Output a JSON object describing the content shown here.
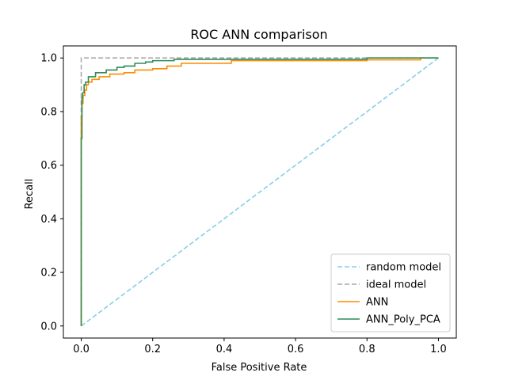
{
  "chart_data": {
    "type": "line",
    "title": "ROC ANN comparison",
    "xlabel": "False Positive Rate",
    "ylabel": "Recall",
    "xlim": [
      -0.05,
      1.05
    ],
    "ylim": [
      -0.045,
      1.045
    ],
    "xticks": [
      0.0,
      0.2,
      0.4,
      0.6,
      0.8,
      1.0
    ],
    "yticks": [
      0.0,
      0.2,
      0.4,
      0.6,
      0.8,
      1.0
    ],
    "xtick_labels": [
      "0.0",
      "0.2",
      "0.4",
      "0.6",
      "0.8",
      "1.0"
    ],
    "ytick_labels": [
      "0.0",
      "0.2",
      "0.4",
      "0.6",
      "0.8",
      "1.0"
    ],
    "grid": false,
    "legend_position": "bottom-right",
    "series": [
      {
        "name": "random model",
        "color": "#87ceeb",
        "style": "dashed",
        "x": [
          0,
          1
        ],
        "y": [
          0,
          1
        ]
      },
      {
        "name": "ideal model",
        "color": "#a9a9a9",
        "style": "dashed",
        "x": [
          0,
          0,
          1
        ],
        "y": [
          0,
          1,
          1
        ]
      },
      {
        "name": "ANN",
        "color": "#ff8c00",
        "style": "solid",
        "x": [
          0,
          0,
          0.002,
          0.002,
          0.005,
          0.005,
          0.01,
          0.01,
          0.015,
          0.015,
          0.02,
          0.02,
          0.03,
          0.03,
          0.05,
          0.05,
          0.08,
          0.08,
          0.12,
          0.12,
          0.15,
          0.15,
          0.2,
          0.2,
          0.24,
          0.24,
          0.28,
          0.28,
          0.42,
          0.42,
          0.8,
          0.8,
          0.95,
          0.95,
          1.0
        ],
        "y": [
          0,
          0.78,
          0.78,
          0.83,
          0.83,
          0.86,
          0.86,
          0.88,
          0.88,
          0.9,
          0.9,
          0.91,
          0.91,
          0.92,
          0.92,
          0.93,
          0.93,
          0.94,
          0.94,
          0.945,
          0.945,
          0.955,
          0.955,
          0.96,
          0.96,
          0.97,
          0.97,
          0.98,
          0.98,
          0.99,
          0.99,
          0.993,
          0.993,
          1.0,
          1.0
        ]
      },
      {
        "name": "ANN_Poly_PCA",
        "color": "#2e8b57",
        "style": "solid",
        "x": [
          0,
          0,
          0.002,
          0.002,
          0.004,
          0.004,
          0.008,
          0.008,
          0.012,
          0.012,
          0.02,
          0.02,
          0.04,
          0.04,
          0.07,
          0.07,
          0.1,
          0.1,
          0.12,
          0.12,
          0.15,
          0.15,
          0.18,
          0.18,
          0.2,
          0.2,
          0.26,
          0.26,
          0.8,
          0.8,
          1.0
        ],
        "y": [
          0,
          0.7,
          0.7,
          0.85,
          0.85,
          0.87,
          0.87,
          0.9,
          0.9,
          0.91,
          0.91,
          0.93,
          0.93,
          0.945,
          0.945,
          0.955,
          0.955,
          0.965,
          0.965,
          0.97,
          0.97,
          0.98,
          0.98,
          0.985,
          0.985,
          0.99,
          0.99,
          0.995,
          0.995,
          1.0,
          1.0
        ]
      }
    ]
  }
}
